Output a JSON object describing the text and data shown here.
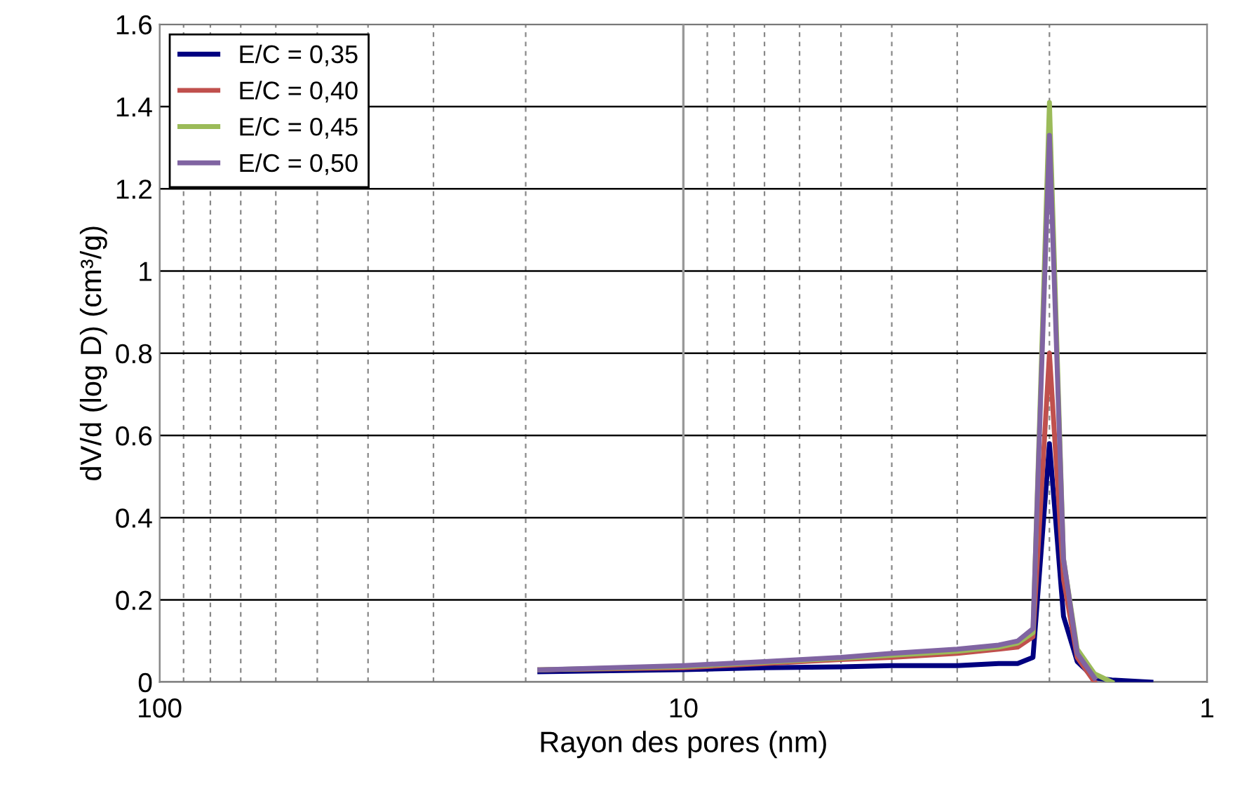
{
  "chart_data": {
    "type": "line",
    "xlabel": "Rayon des pores (nm)",
    "ylabel": "dV/d (log D) (cm³/g)",
    "log": "x",
    "xlim": [
      100,
      1
    ],
    "ylim": [
      0,
      1.6
    ],
    "xticks": [
      100,
      {
        "value": 90,
        "label": null
      },
      {
        "value": 80,
        "label": null
      },
      {
        "value": 70,
        "label": null
      },
      {
        "value": 60,
        "label": null
      },
      {
        "value": 50,
        "label": null
      },
      {
        "value": 40,
        "label": null
      },
      {
        "value": 30,
        "label": null
      },
      {
        "value": 20,
        "label": null
      },
      10,
      {
        "value": 9,
        "label": null
      },
      {
        "value": 8,
        "label": null
      },
      {
        "value": 7,
        "label": null
      },
      {
        "value": 6,
        "label": null
      },
      {
        "value": 5,
        "label": null
      },
      {
        "value": 4,
        "label": null
      },
      {
        "value": 3,
        "label": null
      },
      {
        "value": 2,
        "label": null
      },
      1
    ],
    "yticks": [
      0,
      0.2,
      0.4,
      0.6,
      0.8,
      1,
      1.2,
      1.4,
      1.6
    ],
    "grid": true,
    "ref_lines": [
      {
        "axis": "x",
        "value": 10,
        "color": "#999999",
        "line_style": "solid"
      }
    ],
    "legend": "top left",
    "marker": "none",
    "line_style": "solid",
    "x": [
      18.8,
      10,
      7,
      5,
      4,
      3,
      2.5,
      2.3,
      2.15,
      2.0,
      1.88,
      1.77,
      1.64,
      1.52,
      1.28
    ],
    "series": [
      {
        "name": "E/C = 0,35",
        "color": "#000080",
        "values": [
          0.025,
          0.03,
          0.035,
          0.037,
          0.04,
          0.04,
          0.045,
          0.045,
          0.06,
          0.58,
          0.16,
          0.05,
          0.01,
          0.005,
          0.0
        ]
      },
      {
        "name": "E/C = 0,40",
        "color": "#c0504d",
        "values": [
          0.03,
          0.035,
          0.045,
          0.055,
          0.06,
          0.07,
          0.08,
          0.085,
          0.11,
          0.8,
          0.25,
          0.06,
          0.0,
          null,
          null
        ]
      },
      {
        "name": "E/C = 0,45",
        "color": "#9bbb59",
        "values": [
          0.03,
          0.038,
          0.048,
          0.058,
          0.065,
          0.075,
          0.085,
          0.095,
          0.12,
          1.41,
          0.3,
          0.08,
          0.02,
          0.0,
          null
        ]
      },
      {
        "name": "E/C = 0,50",
        "color": "#8064a2",
        "values": [
          0.03,
          0.04,
          0.05,
          0.06,
          0.07,
          0.08,
          0.09,
          0.1,
          0.13,
          1.33,
          0.3,
          0.07,
          0.01,
          null,
          null
        ]
      }
    ]
  }
}
